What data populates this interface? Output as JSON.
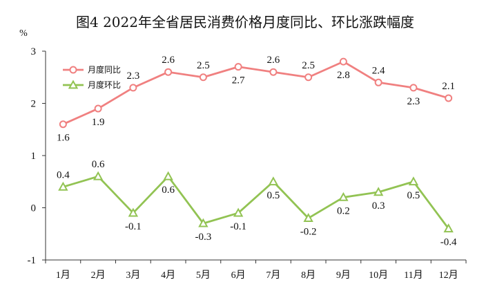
{
  "chart_data": {
    "type": "line",
    "title": "图4  2022年全省居民消费价格月度同比、环比涨跌幅度",
    "unit": "%",
    "categories": [
      "1月",
      "2月",
      "3月",
      "4月",
      "5月",
      "6月",
      "7月",
      "8月",
      "9月",
      "10月",
      "11月",
      "12月"
    ],
    "ylim": [
      -1,
      3
    ],
    "yticks": [
      3,
      2,
      1,
      0,
      -1
    ],
    "grid": false,
    "legend_position": "top-left",
    "series": [
      {
        "name": "月度同比",
        "color": "#f08080",
        "marker": "circle",
        "values": [
          1.6,
          1.9,
          2.3,
          2.6,
          2.5,
          2.7,
          2.6,
          2.5,
          2.8,
          2.4,
          2.3,
          2.1
        ],
        "labels": [
          "1.6",
          "1.9",
          "2.3",
          "2.6",
          "2.5",
          "2.7",
          "2.6",
          "2.5",
          "2.8",
          "2.4",
          "2.3",
          "2.1"
        ],
        "label_side": [
          "below",
          "below",
          "above",
          "above",
          "above",
          "below",
          "above",
          "above",
          "below",
          "above",
          "below",
          "above"
        ]
      },
      {
        "name": "月度环比",
        "color": "#92c353",
        "marker": "triangle",
        "values": [
          0.4,
          0.6,
          -0.1,
          0.6,
          -0.3,
          -0.1,
          0.5,
          -0.2,
          0.2,
          0.3,
          0.5,
          -0.4
        ],
        "labels": [
          "0.4",
          "0.6",
          "-0.1",
          "0.6",
          "-0.3",
          "-0.1",
          "0.5",
          "-0.2",
          "0.2",
          "0.3",
          "0.5",
          "-0.4"
        ],
        "label_side": [
          "above",
          "above",
          "below",
          "below",
          "below",
          "below",
          "below",
          "below",
          "below",
          "below",
          "below",
          "below"
        ]
      }
    ]
  }
}
